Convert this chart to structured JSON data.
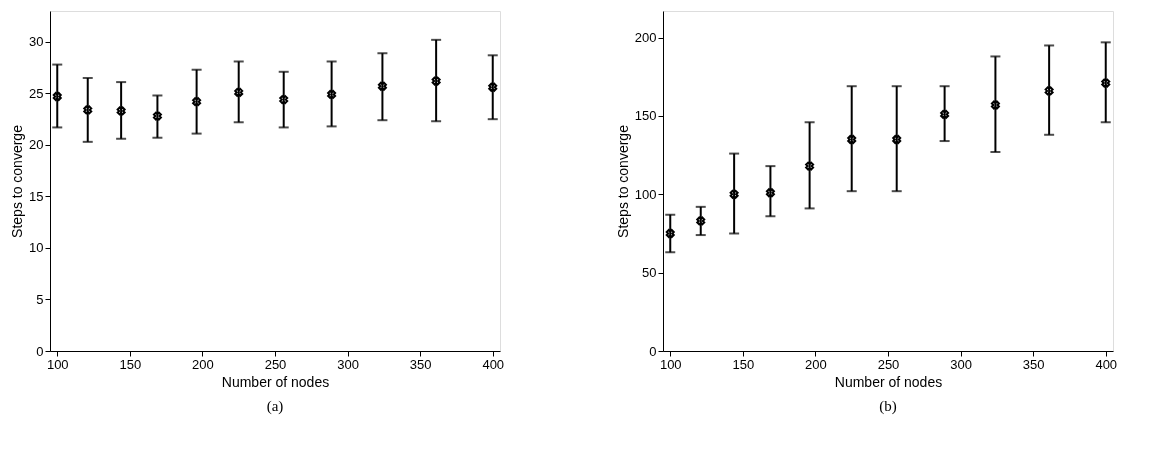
{
  "chart_data": [
    {
      "type": "scatter",
      "xlabel": "Number of nodes",
      "ylabel": "Steps to converge",
      "annotations": [
        "(a)"
      ],
      "x": [
        100,
        121,
        144,
        169,
        196,
        225,
        256,
        289,
        324,
        361,
        400
      ],
      "series": [
        {
          "color": "#000000",
          "values": [
            24.7,
            23.4,
            23.3,
            22.8,
            24.2,
            25.1,
            24.4,
            24.9,
            25.7,
            26.2,
            25.6
          ],
          "errors": [
            [
              21.7,
              27.8
            ],
            [
              20.3,
              26.5
            ],
            [
              20.6,
              26.1
            ],
            [
              20.7,
              24.8
            ],
            [
              21.1,
              27.3
            ],
            [
              22.2,
              28.1
            ],
            [
              21.7,
              27.1
            ],
            [
              21.8,
              28.1
            ],
            [
              22.4,
              28.9
            ],
            [
              22.3,
              30.2
            ],
            [
              22.5,
              28.7
            ]
          ]
        }
      ],
      "xlim": [
        95,
        405
      ],
      "xticks": [
        100,
        150,
        200,
        250,
        300,
        350,
        400
      ],
      "ylim": [
        0,
        33
      ],
      "yticks": [
        0,
        5,
        10,
        15,
        20,
        25,
        30
      ],
      "grid": false,
      "marker": "cross"
    },
    {
      "type": "scatter",
      "xlabel": "Number of nodes",
      "ylabel": "Steps to converge",
      "annotations": [
        "(b)"
      ],
      "x": [
        100,
        121,
        144,
        169,
        196,
        225,
        256,
        289,
        324,
        361,
        400
      ],
      "series": [
        {
          "color": "#000000",
          "values": [
            75,
            83,
            100,
            101,
            118,
            135,
            135,
            151,
            157,
            166,
            171
          ],
          "errors": [
            [
              63,
              87
            ],
            [
              74,
              92
            ],
            [
              75,
              126
            ],
            [
              86,
              118
            ],
            [
              91,
              146
            ],
            [
              102,
              169
            ],
            [
              102,
              169
            ],
            [
              134,
              169
            ],
            [
              127,
              188
            ],
            [
              138,
              195
            ],
            [
              146,
              197
            ]
          ]
        }
      ],
      "xlim": [
        95,
        405
      ],
      "xticks": [
        100,
        150,
        200,
        250,
        300,
        350,
        400
      ],
      "ylim": [
        0,
        217
      ],
      "yticks": [
        0,
        50,
        100,
        150,
        200
      ],
      "grid": false,
      "marker": "cross"
    }
  ]
}
